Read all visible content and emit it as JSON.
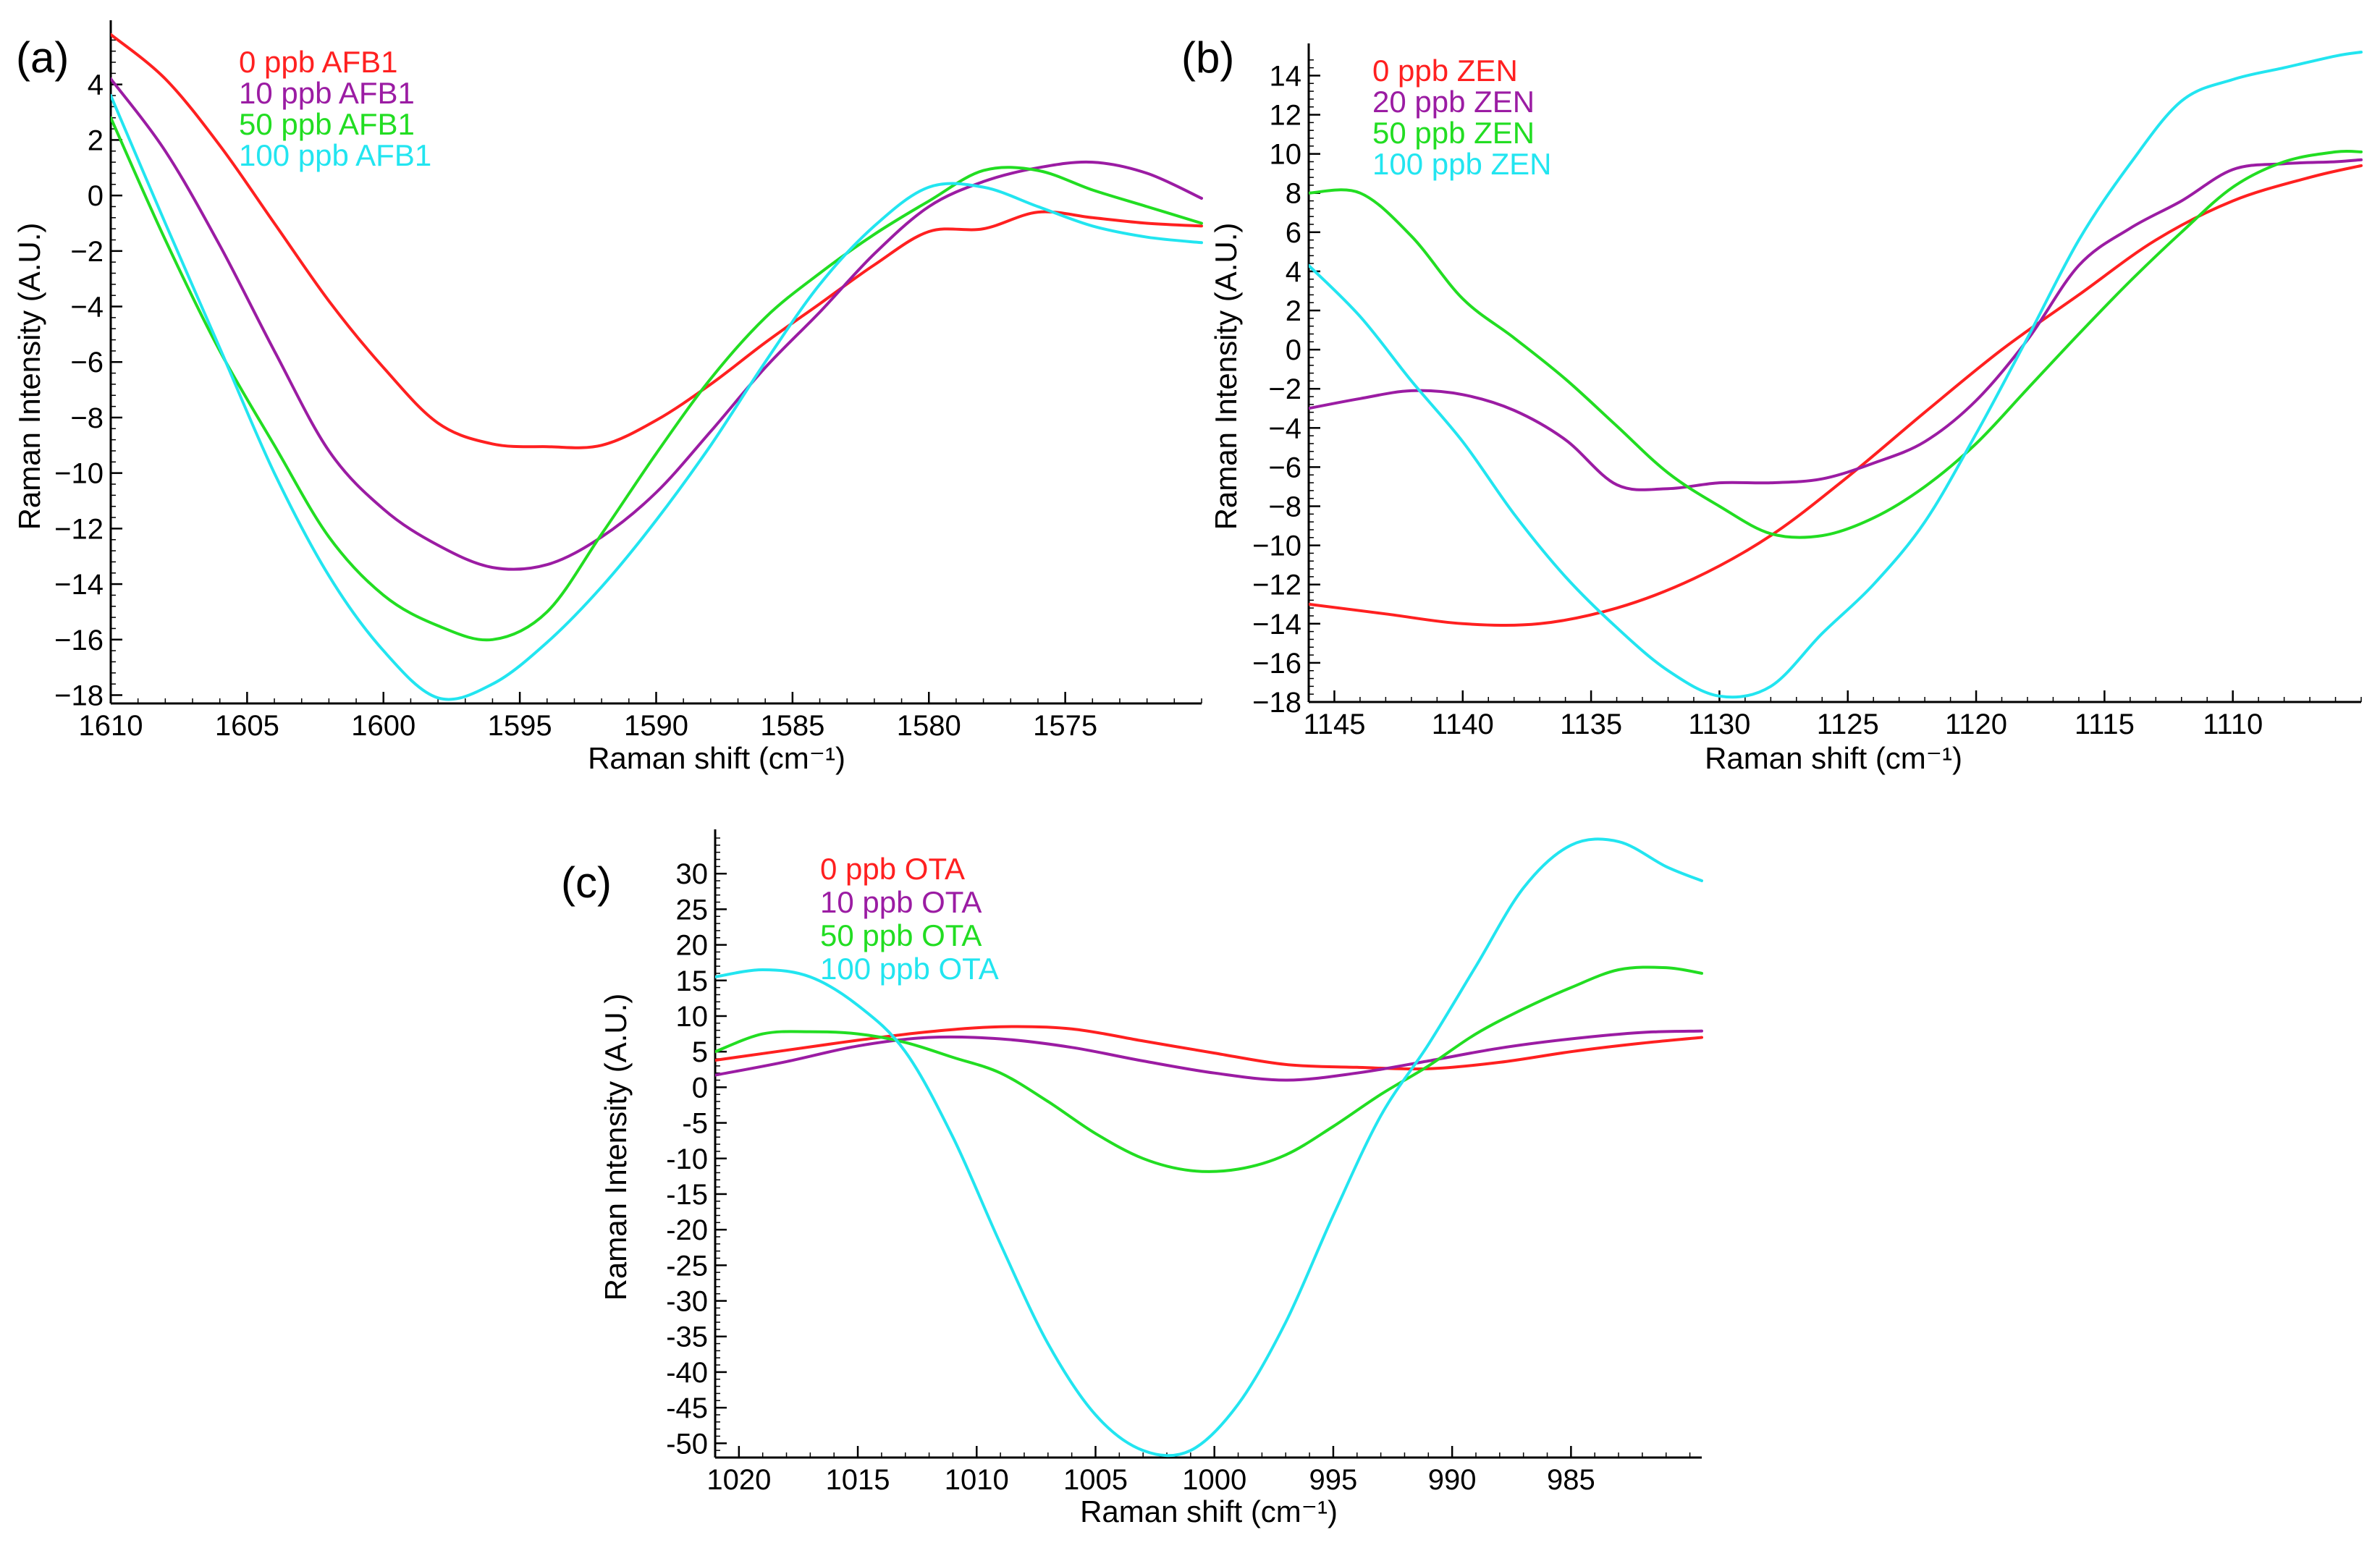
{
  "chart_data": [
    {
      "type": "line",
      "panel": "(a)",
      "xlabel": "Raman shift (cm⁻¹)",
      "ylabel": "Raman Intensity (A.U.)",
      "xlim": [
        1610,
        1570
      ],
      "ylim": [
        -18.3,
        6.0
      ],
      "x_ticks": [
        1610,
        1605,
        1600,
        1595,
        1590,
        1585,
        1580,
        1575
      ],
      "x_tick_labels": [
        "1610",
        "1605",
        "1600",
        "1595",
        "1590",
        "1585",
        "1580",
        "1575"
      ],
      "y_ticks": [
        4,
        2,
        0,
        -2,
        -4,
        -6,
        -8,
        -10,
        -12,
        -14,
        -16,
        -18
      ],
      "y_tick_labels": [
        "4",
        "2",
        "0",
        "−2",
        "−4",
        "−6",
        "−8",
        "−10",
        "−12",
        "−14",
        "−16",
        "−18"
      ],
      "series": [
        {
          "name": "0 ppb AFB1",
          "color": "#ff2020",
          "x": [
            1610,
            1608,
            1606,
            1604,
            1602,
            1600,
            1598,
            1596,
            1594,
            1592,
            1590,
            1588,
            1586,
            1584,
            1582,
            1580,
            1578,
            1576,
            1574,
            1572,
            1570
          ],
          "y": [
            5.8,
            4.2,
            1.8,
            -1.0,
            -3.8,
            -6.2,
            -8.2,
            -8.95,
            -9.05,
            -9.0,
            -8.1,
            -6.8,
            -5.3,
            -3.9,
            -2.5,
            -1.3,
            -1.2,
            -0.6,
            -0.8,
            -1.0,
            -1.1
          ]
        },
        {
          "name": "10 ppb AFB1",
          "color": "#9b1ca3",
          "x": [
            1610,
            1608,
            1606,
            1604,
            1602,
            1600,
            1598,
            1596,
            1594,
            1592,
            1590,
            1588,
            1586,
            1584,
            1582,
            1580,
            1578,
            1576,
            1574,
            1572,
            1570
          ],
          "y": [
            4.2,
            1.6,
            -1.8,
            -5.6,
            -9.2,
            -11.3,
            -12.6,
            -13.4,
            -13.3,
            -12.3,
            -10.7,
            -8.5,
            -6.2,
            -4.2,
            -2.1,
            -0.4,
            0.5,
            1.0,
            1.2,
            0.8,
            -0.1
          ]
        },
        {
          "name": "50 ppb AFB1",
          "color": "#22dd22",
          "x": [
            1610,
            1608,
            1606,
            1604,
            1602,
            1600,
            1598,
            1596,
            1594,
            1592,
            1590,
            1588,
            1586,
            1584,
            1582,
            1580,
            1578,
            1576,
            1574,
            1572,
            1570
          ],
          "y": [
            2.8,
            -1.6,
            -5.6,
            -9.0,
            -12.3,
            -14.4,
            -15.5,
            -16.0,
            -15.0,
            -12.2,
            -9.3,
            -6.6,
            -4.4,
            -2.8,
            -1.4,
            -0.2,
            0.9,
            0.9,
            0.2,
            -0.4,
            -1.0
          ]
        },
        {
          "name": "100 ppb AFB1",
          "color": "#22e5f0",
          "x": [
            1610,
            1608,
            1606,
            1604,
            1602,
            1600,
            1598,
            1596,
            1594,
            1592,
            1590,
            1588,
            1586,
            1584,
            1582,
            1580,
            1578,
            1576,
            1574,
            1572,
            1570
          ],
          "y": [
            3.6,
            -1.0,
            -5.5,
            -10.0,
            -13.7,
            -16.4,
            -18.1,
            -17.6,
            -16.1,
            -14.1,
            -11.7,
            -9.0,
            -6.0,
            -3.2,
            -1.1,
            0.3,
            0.3,
            -0.4,
            -1.1,
            -1.5,
            -1.7
          ]
        }
      ]
    },
    {
      "type": "line",
      "panel": "(b)",
      "xlabel": "Raman shift (cm⁻¹)",
      "ylabel": "Raman Intensity (A.U.)",
      "xlim": [
        1146,
        1105
      ],
      "ylim": [
        -18.0,
        15.2
      ],
      "x_ticks": [
        1145,
        1140,
        1135,
        1130,
        1125,
        1120,
        1115,
        1110
      ],
      "x_tick_labels": [
        "1145",
        "1140",
        "1135",
        "1130",
        "1125",
        "1120",
        "1115",
        "1110"
      ],
      "y_ticks": [
        14,
        12,
        10,
        8,
        6,
        4,
        2,
        0,
        -2,
        -4,
        -6,
        -8,
        -10,
        -12,
        -14,
        -16,
        -18
      ],
      "y_tick_labels": [
        "14",
        "12",
        "10",
        "8",
        "6",
        "4",
        "2",
        "0",
        "−2",
        "−4",
        "−6",
        "−8",
        "−10",
        "−12",
        "−14",
        "−16",
        "−18"
      ],
      "series": [
        {
          "name": "0 ppb ZEN",
          "color": "#ff2020",
          "x": [
            1146,
            1143,
            1140,
            1137,
            1134,
            1131,
            1128,
            1125,
            1122,
            1119,
            1116,
            1113,
            1110,
            1107,
            1105
          ],
          "y": [
            -13.0,
            -13.5,
            -14.0,
            -14.0,
            -13.2,
            -11.7,
            -9.5,
            -6.5,
            -3.2,
            0.0,
            2.8,
            5.6,
            7.6,
            8.8,
            9.4
          ]
        },
        {
          "name": "20 ppb ZEN",
          "color": "#9b1ca3",
          "x": [
            1146,
            1144,
            1142,
            1140,
            1138,
            1136,
            1134,
            1132,
            1130,
            1128,
            1126,
            1124,
            1122,
            1120,
            1118,
            1116,
            1114,
            1112,
            1110,
            1108,
            1106,
            1105
          ],
          "y": [
            -3.0,
            -2.5,
            -2.1,
            -2.3,
            -3.1,
            -4.6,
            -6.9,
            -7.1,
            -6.8,
            -6.8,
            -6.6,
            -5.8,
            -4.7,
            -2.6,
            0.5,
            4.3,
            6.2,
            7.6,
            9.2,
            9.5,
            9.6,
            9.7
          ]
        },
        {
          "name": "50 ppb ZEN",
          "color": "#22dd22",
          "x": [
            1146,
            1144,
            1142,
            1140,
            1138,
            1136,
            1134,
            1132,
            1130,
            1128,
            1126,
            1124,
            1122,
            1120,
            1118,
            1116,
            1114,
            1112,
            1110,
            1108,
            1106,
            1105
          ],
          "y": [
            8.0,
            8.0,
            5.8,
            2.6,
            0.6,
            -1.5,
            -3.9,
            -6.3,
            -8.0,
            -9.4,
            -9.5,
            -8.6,
            -7.0,
            -4.8,
            -2.0,
            0.8,
            3.5,
            6.0,
            8.3,
            9.6,
            10.1,
            10.1
          ]
        },
        {
          "name": "100 ppb ZEN",
          "color": "#22e5f0",
          "x": [
            1146,
            1144,
            1142,
            1140,
            1138,
            1136,
            1134,
            1132,
            1130,
            1128,
            1126,
            1124,
            1122,
            1120,
            1118,
            1116,
            1114,
            1112,
            1110,
            1108,
            1106,
            1105
          ],
          "y": [
            4.3,
            1.7,
            -1.6,
            -4.7,
            -8.4,
            -11.6,
            -14.2,
            -16.4,
            -17.7,
            -17.2,
            -14.5,
            -12.0,
            -8.8,
            -4.3,
            0.6,
            5.6,
            9.5,
            12.7,
            13.8,
            14.4,
            15.0,
            15.2
          ]
        }
      ]
    },
    {
      "type": "line",
      "panel": "(c)",
      "xlabel": "Raman shift (cm⁻¹)",
      "ylabel": "Raman Intensity (A.U.)",
      "xlim": [
        1021,
        979.5
      ],
      "ylim": [
        -52.0,
        35.0
      ],
      "x_ticks": [
        1020,
        1015,
        1010,
        1005,
        1000,
        995,
        990,
        985
      ],
      "x_tick_labels": [
        "1020",
        "1015",
        "1010",
        "1005",
        "1000",
        "995",
        "990",
        "985"
      ],
      "y_ticks": [
        30,
        25,
        20,
        15,
        10,
        5,
        0,
        -5,
        -10,
        -15,
        -20,
        -25,
        -30,
        -35,
        -40,
        -45,
        -50
      ],
      "y_tick_labels": [
        "30",
        "25",
        "20",
        "15",
        "10",
        "5",
        "0",
        "-5",
        "-10",
        "-15",
        "-20",
        "-25",
        "-30",
        "-35",
        "-40",
        "-45",
        "-50"
      ],
      "series": [
        {
          "name": "0 ppb OTA",
          "color": "#ff2020",
          "x": [
            1021,
            1018,
            1015,
            1012,
            1009,
            1006,
            1003,
            1000,
            997,
            994,
            991,
            988,
            985,
            982,
            979.5
          ],
          "y": [
            3.8,
            5.2,
            6.6,
            7.8,
            8.5,
            8.2,
            6.5,
            4.8,
            3.2,
            2.8,
            2.6,
            3.5,
            5.0,
            6.2,
            7.0
          ]
        },
        {
          "name": "10 ppb OTA",
          "color": "#9b1ca3",
          "x": [
            1021,
            1018,
            1015,
            1012,
            1009,
            1006,
            1003,
            1000,
            997,
            994,
            991,
            988,
            985,
            982,
            979.5
          ],
          "y": [
            1.7,
            3.6,
            5.8,
            7.0,
            6.8,
            5.6,
            3.7,
            2.0,
            1.0,
            2.0,
            3.7,
            5.5,
            6.8,
            7.7,
            7.9
          ]
        },
        {
          "name": "50 ppb OTA",
          "color": "#22dd22",
          "x": [
            1021,
            1019,
            1017,
            1015,
            1013,
            1011,
            1009,
            1007,
            1005,
            1003,
            1001,
            999,
            997,
            995,
            993,
            991,
            989,
            987,
            985,
            983,
            981,
            979.5
          ],
          "y": [
            5.0,
            7.5,
            7.8,
            7.5,
            6.3,
            4.2,
            2.0,
            -2.0,
            -6.5,
            -10.0,
            -11.7,
            -11.5,
            -9.5,
            -5.5,
            -1.0,
            3.0,
            7.5,
            11.0,
            14.0,
            16.5,
            16.8,
            16.0
          ]
        },
        {
          "name": "100 ppb OTA",
          "color": "#22e5f0",
          "x": [
            1021,
            1019,
            1017,
            1015,
            1013,
            1011,
            1009,
            1007,
            1005,
            1003,
            1001,
            999,
            997,
            995,
            993,
            991,
            989,
            987,
            985,
            983,
            981,
            979.5
          ],
          "y": [
            15.5,
            16.5,
            15.5,
            11.5,
            5.0,
            -7.0,
            -22.0,
            -36.0,
            -46.0,
            -51.0,
            -51.0,
            -44.5,
            -33.0,
            -18.0,
            -4.0,
            6.0,
            17.0,
            28.0,
            34.0,
            34.5,
            31.0,
            29.0
          ]
        }
      ]
    }
  ]
}
